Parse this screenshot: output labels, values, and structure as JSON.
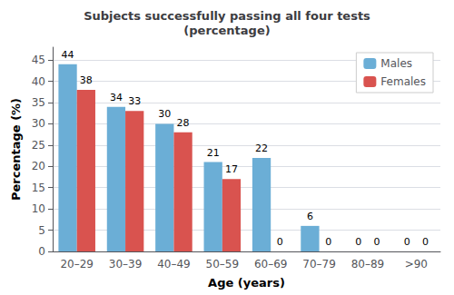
{
  "chart_data": {
    "type": "bar",
    "title": "Subjects successfully passing all four tests\n(percentage)",
    "xlabel": "Age (years)",
    "ylabel": "Percentage (%)",
    "categories": [
      "20–29",
      "30–39",
      "40–49",
      "50–59",
      "60–69",
      "70–79",
      "80–89",
      ">90"
    ],
    "series": [
      {
        "name": "Males",
        "color": "#6baed6",
        "values": [
          44,
          34,
          30,
          21,
          22,
          6,
          0,
          0
        ]
      },
      {
        "name": "Females",
        "color": "#d9534f",
        "values": [
          38,
          33,
          28,
          17,
          0,
          0,
          0,
          0
        ]
      }
    ],
    "ylim": [
      0,
      48
    ],
    "yticks": [
      0,
      5,
      10,
      15,
      20,
      25,
      30,
      35,
      40,
      45
    ],
    "grid": true,
    "legend": "upper right",
    "data_labels": true
  }
}
